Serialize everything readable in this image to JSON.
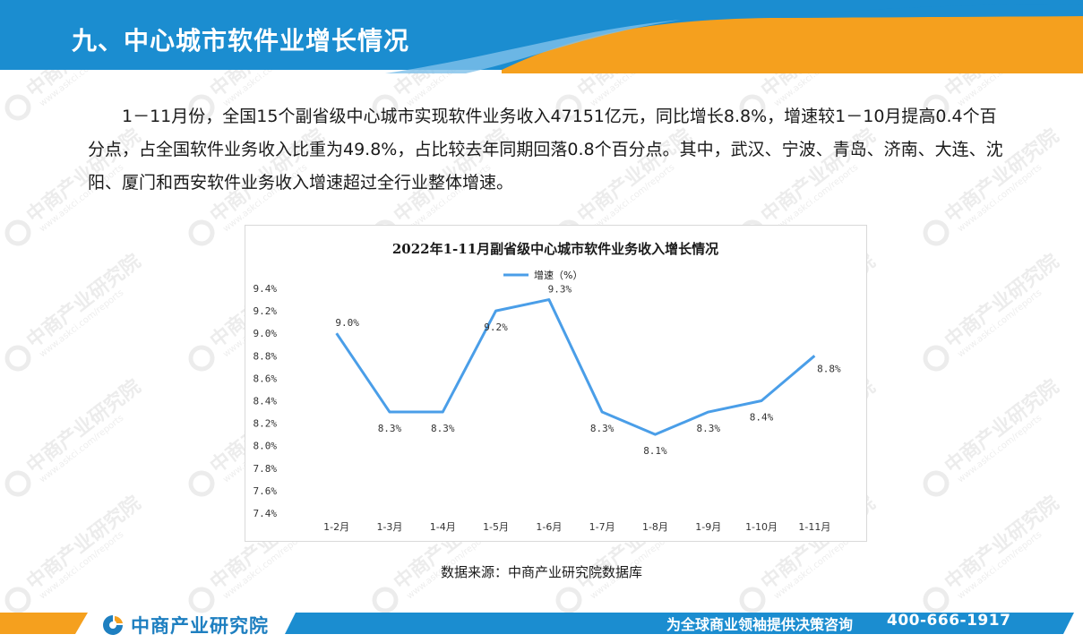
{
  "header": {
    "title": "九、中心城市软件业增长情况"
  },
  "intro_text": "1－11月份，全国15个副省级中心城市实现软件业务收入47151亿元，同比增长8.8%，增速较1－10月提高0.4个百分点，占全国软件业务收入比重为49.8%，占比较去年同期回落0.8个百分点。其中，武汉、宁波、青岛、济南、大连、沈阳、厦门和西安软件业务收入增速超过全行业整体增速。",
  "chart_data": {
    "type": "line",
    "title": "2022年1-11月副省级中心城市软件业务收入增长情况",
    "categories": [
      "1-2月",
      "1-3月",
      "1-4月",
      "1-5月",
      "1-6月",
      "1-7月",
      "1-8月",
      "1-9月",
      "1-10月",
      "1-11月"
    ],
    "series": [
      {
        "name": "增速（%）",
        "values": [
          9.0,
          8.3,
          8.3,
          9.2,
          9.3,
          8.3,
          8.1,
          8.3,
          8.4,
          8.8
        ],
        "labels": [
          "9.0%",
          "8.3%",
          "8.3%",
          "9.2%",
          "9.3%",
          "8.3%",
          "8.1%",
          "8.3%",
          "8.4%",
          "8.8%"
        ]
      }
    ],
    "yticks": [
      "7.4%",
      "7.6%",
      "7.8%",
      "8.0%",
      "8.2%",
      "8.4%",
      "8.6%",
      "8.8%",
      "9.0%",
      "9.2%",
      "9.4%"
    ],
    "ylim": [
      7.4,
      9.4
    ],
    "xlabel": "",
    "ylabel": "",
    "grid": false,
    "legend_position": "top-center",
    "line_color": "#4a9ee8"
  },
  "source_text": "数据来源：中商产业研究院数据库",
  "footer": {
    "logo_text": "中商产业研究院",
    "slogan": "为全球商业领袖提供决策咨询",
    "phone": "400-666-1917"
  },
  "watermark": {
    "text": "中商产业研究院",
    "url": "www.askci.com/reports"
  },
  "colors": {
    "header_blue": "#1b8dd0",
    "header_orange": "#f5a01e",
    "footer_blue": "#1b8dd0",
    "footer_orange": "#f5a01e"
  }
}
